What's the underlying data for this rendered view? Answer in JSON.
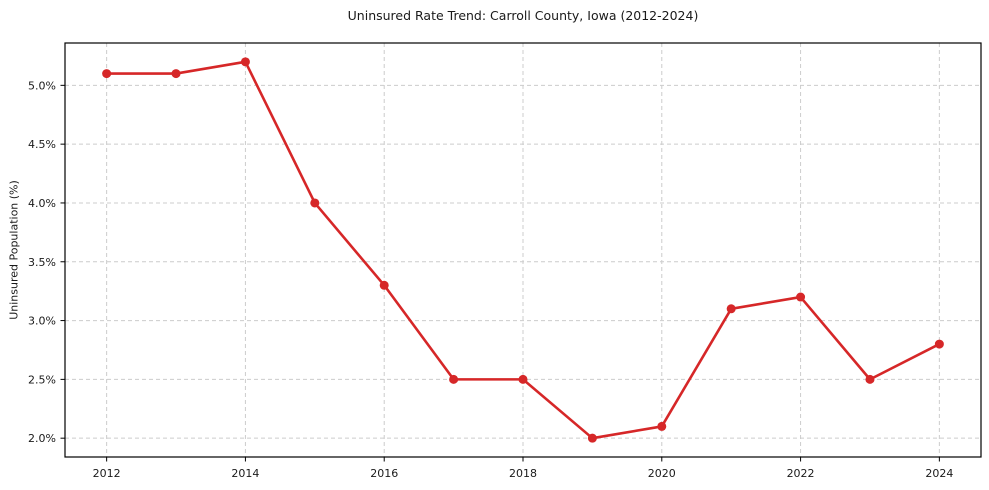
{
  "page": {
    "background_color": "#ffffff"
  },
  "chart_data": {
    "type": "line",
    "title": "Uninsured Rate Trend: Carroll County, Iowa (2012-2024)",
    "xlabel": "",
    "ylabel": "Uninsured Population (%)",
    "x": [
      2012,
      2013,
      2014,
      2015,
      2016,
      2017,
      2018,
      2019,
      2020,
      2021,
      2022,
      2023,
      2024
    ],
    "values": [
      5.1,
      5.1,
      5.2,
      4.0,
      3.3,
      2.5,
      2.5,
      2.0,
      2.1,
      3.1,
      3.2,
      2.5,
      2.8
    ],
    "xlim": [
      2011.4,
      2024.6
    ],
    "ylim": [
      1.84,
      5.36
    ],
    "xticks": {
      "values": [
        2012,
        2014,
        2016,
        2018,
        2020,
        2022,
        2024
      ],
      "labels": [
        "2012",
        "2014",
        "2016",
        "2018",
        "2020",
        "2022",
        "2024"
      ]
    },
    "yticks": {
      "values": [
        2.0,
        2.5,
        3.0,
        3.5,
        4.0,
        4.5,
        5.0
      ],
      "labels": [
        "2.0%",
        "2.5%",
        "3.0%",
        "3.5%",
        "4.0%",
        "4.5%",
        "5.0%"
      ]
    },
    "grid": {
      "show": true,
      "style": "dashed",
      "color": "#cccccc"
    },
    "legend": {
      "show": false
    },
    "line_color": "#d62728",
    "marker_color": "#d62728",
    "axis_color": "#000000",
    "text_color": "#1a1a1a"
  }
}
